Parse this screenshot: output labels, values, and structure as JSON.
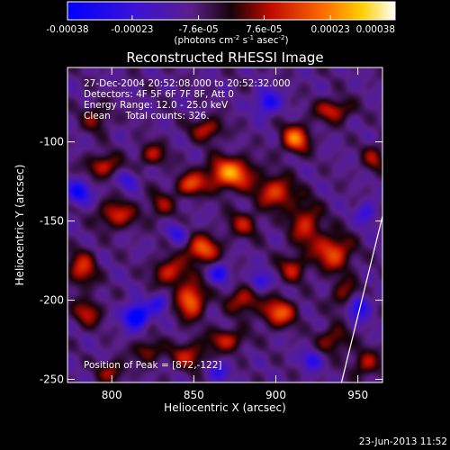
{
  "chart_data": {
    "type": "heatmap",
    "title": "Reconstructed RHESSI Image",
    "xlabel": "Heliocentric X (arcsec)",
    "ylabel": "Heliocentric Y (arcsec)",
    "xlim": [
      773,
      965
    ],
    "ylim": [
      -252,
      -53
    ],
    "x_ticks": [
      800,
      850,
      900,
      950
    ],
    "x_tick_labels": [
      "800",
      "850",
      "900",
      "950"
    ],
    "y_ticks": [
      -100,
      -150,
      -200,
      -250
    ],
    "y_tick_labels": [
      "-100",
      "-150",
      "-200",
      "-250"
    ],
    "colorbar": {
      "range": [
        -0.00038,
        0.00038
      ],
      "tick_values": [
        -0.00038,
        -0.00023,
        -7.6e-05,
        7.6e-05,
        0.00023,
        0.00038
      ],
      "tick_labels": [
        "-0.00038",
        "-0.00023",
        "-7.6e-05",
        "7.6e-05",
        "0.00023",
        "0.00038"
      ],
      "unit_label_parts": [
        "(photons cm",
        "-2",
        " s",
        "-1",
        " asec",
        "-2",
        ")"
      ]
    },
    "annotations": [
      "27-Dec-2004 20:52:08.000 to 20:52:32.000",
      "Detectors: 4F 5F 6F 7F 8F, Att 0",
      "Energy Range: 12.0 - 25.0 keV",
      "Clean     Total counts: 326."
    ],
    "peak_label": "Position of Peak = [872,-122]",
    "peak_position": [
      872,
      -122
    ],
    "footer_date": "23-Jun-2013 11:52",
    "features": [
      {
        "kind": "source",
        "x": 872,
        "y": -120,
        "amp": 0.00033,
        "sx": 10,
        "sy": 7
      },
      {
        "kind": "source",
        "x": 912,
        "y": -98,
        "amp": 0.0003,
        "sx": 6,
        "sy": 6
      },
      {
        "kind": "source",
        "x": 858,
        "y": -92,
        "amp": 0.00019,
        "sx": 7,
        "sy": 5
      },
      {
        "kind": "source",
        "x": 935,
        "y": -80,
        "amp": 0.0002,
        "sx": 8,
        "sy": 5
      },
      {
        "kind": "source",
        "x": 848,
        "y": -127,
        "amp": 0.00024,
        "sx": 6,
        "sy": 5
      },
      {
        "kind": "source",
        "x": 900,
        "y": -132,
        "amp": 0.00024,
        "sx": 8,
        "sy": 7
      },
      {
        "kind": "source",
        "x": 918,
        "y": -152,
        "amp": 0.0002,
        "sx": 7,
        "sy": 10
      },
      {
        "kind": "source",
        "x": 935,
        "y": -170,
        "amp": 0.00025,
        "sx": 8,
        "sy": 8
      },
      {
        "kind": "source",
        "x": 910,
        "y": -180,
        "amp": 0.00017,
        "sx": 6,
        "sy": 6
      },
      {
        "kind": "source",
        "x": 855,
        "y": -168,
        "amp": 0.00028,
        "sx": 7,
        "sy": 6
      },
      {
        "kind": "source",
        "x": 835,
        "y": -182,
        "amp": 0.00021,
        "sx": 7,
        "sy": 6
      },
      {
        "kind": "source",
        "x": 848,
        "y": -200,
        "amp": 0.0003,
        "sx": 6,
        "sy": 8
      },
      {
        "kind": "source",
        "x": 880,
        "y": -200,
        "amp": 0.00019,
        "sx": 7,
        "sy": 6
      },
      {
        "kind": "source",
        "x": 902,
        "y": -208,
        "amp": 0.00027,
        "sx": 7,
        "sy": 6
      },
      {
        "kind": "source",
        "x": 945,
        "y": -198,
        "amp": 0.00021,
        "sx": 7,
        "sy": 7
      },
      {
        "kind": "source",
        "x": 803,
        "y": -146,
        "amp": 0.00021,
        "sx": 8,
        "sy": 6
      },
      {
        "kind": "source",
        "x": 795,
        "y": -115,
        "amp": 0.0002,
        "sx": 7,
        "sy": 5
      },
      {
        "kind": "source",
        "x": 825,
        "y": -108,
        "amp": 0.00017,
        "sx": 6,
        "sy": 5
      },
      {
        "kind": "source",
        "x": 782,
        "y": -180,
        "amp": 0.00021,
        "sx": 6,
        "sy": 8
      },
      {
        "kind": "source",
        "x": 785,
        "y": -208,
        "amp": 0.00018,
        "sx": 6,
        "sy": 6
      },
      {
        "kind": "source",
        "x": 935,
        "y": -225,
        "amp": 0.00016,
        "sx": 7,
        "sy": 6
      },
      {
        "kind": "source",
        "x": 870,
        "y": -225,
        "amp": 0.00019,
        "sx": 8,
        "sy": 5
      },
      {
        "kind": "source",
        "x": 847,
        "y": -235,
        "amp": 0.00018,
        "sx": 8,
        "sy": 6
      },
      {
        "kind": "source",
        "x": 822,
        "y": -232,
        "amp": 0.00016,
        "sx": 6,
        "sy": 5
      },
      {
        "kind": "source",
        "x": 800,
        "y": -245,
        "amp": 0.00016,
        "sx": 6,
        "sy": 5
      },
      {
        "kind": "source",
        "x": 955,
        "y": -240,
        "amp": 0.00017,
        "sx": 6,
        "sy": 6
      },
      {
        "kind": "source",
        "x": 880,
        "y": -152,
        "amp": 0.00016,
        "sx": 7,
        "sy": 6
      },
      {
        "kind": "source",
        "x": 830,
        "y": -140,
        "amp": 0.00014,
        "sx": 6,
        "sy": 6
      },
      {
        "kind": "source",
        "x": 960,
        "y": -110,
        "amp": 0.00015,
        "sx": 5,
        "sy": 6
      },
      {
        "kind": "source",
        "x": 790,
        "y": -85,
        "amp": 0.00014,
        "sx": 6,
        "sy": 6
      },
      {
        "kind": "hole",
        "x": 815,
        "y": -210,
        "amp": -0.00038,
        "sx": 5,
        "sy": 5
      },
      {
        "kind": "hole",
        "x": 950,
        "y": -203,
        "amp": -0.00033,
        "sx": 5,
        "sy": 6
      },
      {
        "kind": "hole",
        "x": 780,
        "y": -132,
        "amp": -0.00025,
        "sx": 5,
        "sy": 5
      },
      {
        "kind": "hole",
        "x": 895,
        "y": -75,
        "amp": -0.00024,
        "sx": 5,
        "sy": 5
      },
      {
        "kind": "hole",
        "x": 866,
        "y": -183,
        "amp": -0.00022,
        "sx": 4,
        "sy": 4
      },
      {
        "kind": "hole",
        "x": 890,
        "y": -188,
        "amp": -0.00019,
        "sx": 4,
        "sy": 4
      },
      {
        "kind": "hole",
        "x": 922,
        "y": -238,
        "amp": -0.0002,
        "sx": 4,
        "sy": 4
      },
      {
        "kind": "hole",
        "x": 829,
        "y": -202,
        "amp": -0.00018,
        "sx": 4,
        "sy": 4
      },
      {
        "kind": "hole",
        "x": 840,
        "y": -158,
        "amp": -0.00016,
        "sx": 4,
        "sy": 4
      },
      {
        "kind": "hole",
        "x": 955,
        "y": -145,
        "amp": -0.00016,
        "sx": 4,
        "sy": 5
      },
      {
        "kind": "hole",
        "x": 865,
        "y": -245,
        "amp": -0.00015,
        "sx": 5,
        "sy": 4
      },
      {
        "kind": "hole",
        "x": 810,
        "y": -124,
        "amp": -0.00015,
        "sx": 4,
        "sy": 4
      }
    ],
    "limb_line": [
      [
        940,
        -252
      ],
      [
        965,
        -147
      ]
    ],
    "background_level": -9e-05
  }
}
